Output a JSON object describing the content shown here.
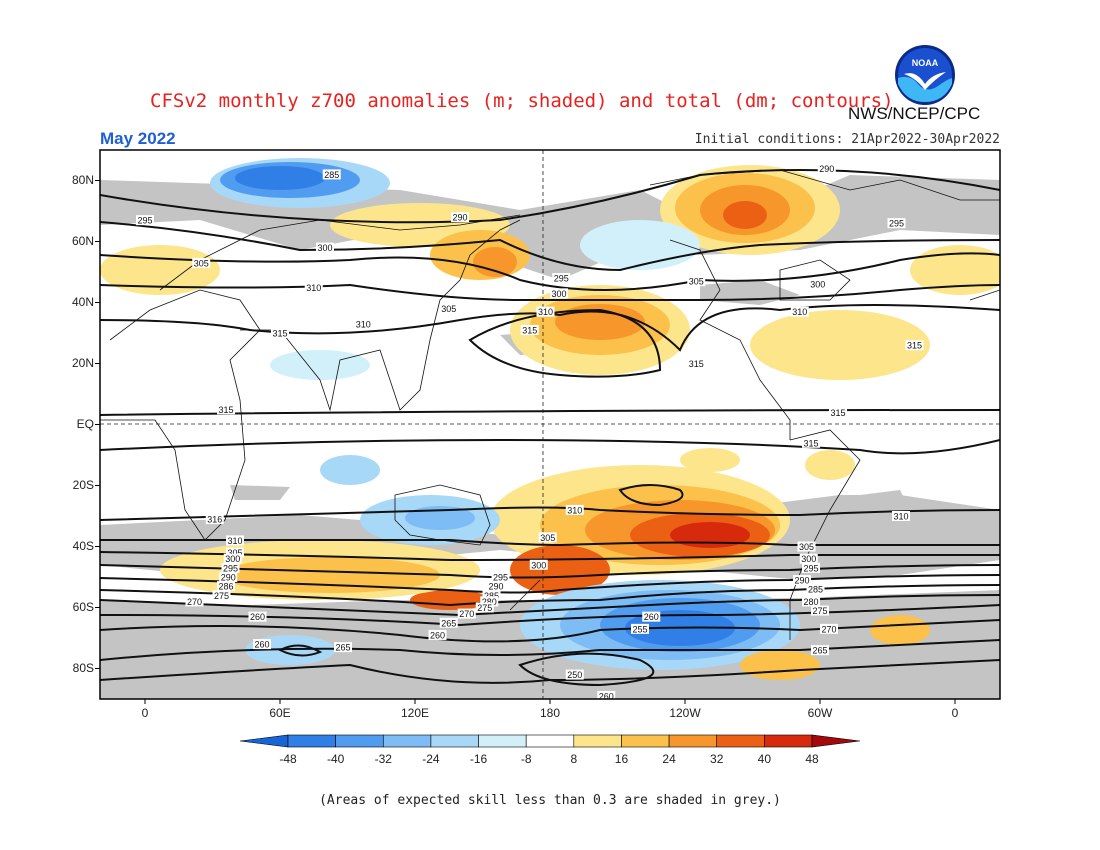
{
  "header": {
    "title": "CFSv2 monthly z700 anomalies (m; shaded) and total (dm; contours)",
    "agency": "NWS/NCEP/CPC",
    "month": "May 2022",
    "initial_conditions": "Initial conditions: 21Apr2022-30Apr2022",
    "logo_text": "NOAA"
  },
  "axes": {
    "lat_labels": [
      "80N",
      "60N",
      "40N",
      "20N",
      "EQ",
      "20S",
      "40S",
      "60S",
      "80S"
    ],
    "lon_labels": [
      "0",
      "60E",
      "120E",
      "180",
      "120W",
      "60W",
      "0"
    ]
  },
  "colorbar": {
    "labels": [
      "-48",
      "-40",
      "-32",
      "-24",
      "-16",
      "-8",
      "8",
      "16",
      "24",
      "32",
      "40",
      "48"
    ],
    "colors": [
      "#1565d8",
      "#2f7fe6",
      "#4f9cf0",
      "#7dbcf5",
      "#a8d8f7",
      "#d2f0f9",
      "#ffffff",
      "#fde58c",
      "#fbc14b",
      "#f7962a",
      "#ec6014",
      "#d72a0d",
      "#a3080a"
    ]
  },
  "contour_labels": [
    {
      "text": "285",
      "lon": 83,
      "lat": 82
    },
    {
      "text": "295",
      "lon": 0,
      "lat": 67
    },
    {
      "text": "290",
      "lon": 140,
      "lat": 68
    },
    {
      "text": "300",
      "lon": 80,
      "lat": 58
    },
    {
      "text": "305",
      "lon": 25,
      "lat": 53
    },
    {
      "text": "310",
      "lon": 75,
      "lat": 45
    },
    {
      "text": "310",
      "lon": 97,
      "lat": 33
    },
    {
      "text": "305",
      "lon": 135,
      "lat": 38
    },
    {
      "text": "315",
      "lon": 60,
      "lat": 30
    },
    {
      "text": "315",
      "lon": 36,
      "lat": 5
    },
    {
      "text": "295",
      "lon": 185,
      "lat": 48
    },
    {
      "text": "300",
      "lon": 184,
      "lat": 43
    },
    {
      "text": "310",
      "lon": 178,
      "lat": 37
    },
    {
      "text": "315",
      "lon": 171,
      "lat": 31
    },
    {
      "text": "315",
      "lon": 245,
      "lat": 20
    },
    {
      "text": "305",
      "lon": 245,
      "lat": 47
    },
    {
      "text": "290",
      "lon": 303,
      "lat": 84
    },
    {
      "text": "295",
      "lon": 334,
      "lat": 66
    },
    {
      "text": "300",
      "lon": 299,
      "lat": 46
    },
    {
      "text": "310",
      "lon": 291,
      "lat": 37
    },
    {
      "text": "315",
      "lon": 342,
      "lat": 26
    },
    {
      "text": "315",
      "lon": 308,
      "lat": 4
    },
    {
      "text": "315",
      "lon": 296,
      "lat": -6
    },
    {
      "text": "315",
      "lon": 388,
      "lat": -6
    },
    {
      "text": "310",
      "lon": 336,
      "lat": -30
    },
    {
      "text": "316",
      "lon": 31,
      "lat": -31
    },
    {
      "text": "310",
      "lon": 191,
      "lat": -28
    },
    {
      "text": "305",
      "lon": 179,
      "lat": -37
    },
    {
      "text": "300",
      "lon": 175,
      "lat": -46
    },
    {
      "text": "310",
      "lon": 40,
      "lat": -38
    },
    {
      "text": "305",
      "lon": 40,
      "lat": -42
    },
    {
      "text": "300",
      "lon": 39,
      "lat": -44
    },
    {
      "text": "295",
      "lon": 38,
      "lat": -47
    },
    {
      "text": "290",
      "lon": 37,
      "lat": -50
    },
    {
      "text": "286",
      "lon": 36,
      "lat": -53
    },
    {
      "text": "275",
      "lon": 34,
      "lat": -56
    },
    {
      "text": "270",
      "lon": 22,
      "lat": -58
    },
    {
      "text": "295",
      "lon": 158,
      "lat": -50
    },
    {
      "text": "290",
      "lon": 156,
      "lat": -53
    },
    {
      "text": "285",
      "lon": 154,
      "lat": -56
    },
    {
      "text": "280",
      "lon": 153,
      "lat": -58
    },
    {
      "text": "275",
      "lon": 151,
      "lat": -60
    },
    {
      "text": "270",
      "lon": 143,
      "lat": -62
    },
    {
      "text": "265",
      "lon": 135,
      "lat": -65
    },
    {
      "text": "260",
      "lon": 130,
      "lat": -69
    },
    {
      "text": "265",
      "lon": 88,
      "lat": -73
    },
    {
      "text": "260",
      "lon": 50,
      "lat": -63
    },
    {
      "text": "260",
      "lon": 52,
      "lat": -72
    },
    {
      "text": "260",
      "lon": 225,
      "lat": -63
    },
    {
      "text": "255",
      "lon": 220,
      "lat": -67
    },
    {
      "text": "250",
      "lon": 191,
      "lat": -82
    },
    {
      "text": "260",
      "lon": 205,
      "lat": -89
    },
    {
      "text": "305",
      "lon": 294,
      "lat": -40
    },
    {
      "text": "300",
      "lon": 295,
      "lat": -44
    },
    {
      "text": "295",
      "lon": 296,
      "lat": -47
    },
    {
      "text": "290",
      "lon": 292,
      "lat": -51
    },
    {
      "text": "285",
      "lon": 298,
      "lat": -54
    },
    {
      "text": "280",
      "lon": 296,
      "lat": -58
    },
    {
      "text": "275",
      "lon": 300,
      "lat": -61
    },
    {
      "text": "270",
      "lon": 304,
      "lat": -67
    },
    {
      "text": "265",
      "lon": 300,
      "lat": -74
    }
  ],
  "footnote": "(Areas of expected skill less than 0.3 are shaded in grey.)"
}
